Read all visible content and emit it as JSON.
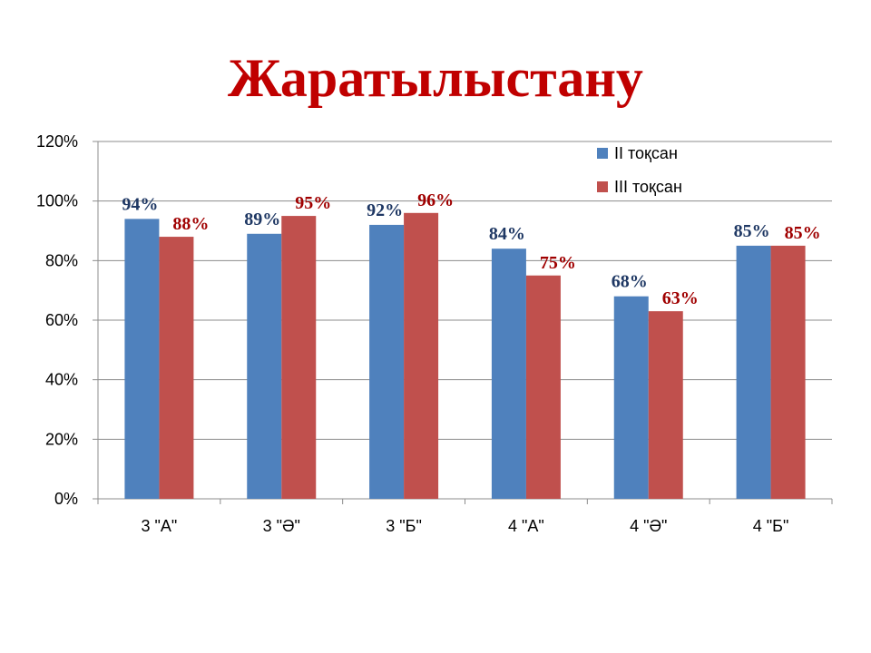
{
  "title": "Жаратылыстану",
  "colors": {
    "title": "#C00000",
    "series_1": "#4F81BD",
    "series_2": "#C0504D",
    "label_1": "#1F3864",
    "label_2": "#A00000"
  },
  "chart_data": {
    "type": "bar",
    "title": "Жаратылыстану",
    "xlabel": "",
    "ylabel": "",
    "ylim": [
      0,
      120
    ],
    "yticks": [
      "0%",
      "20%",
      "40%",
      "60%",
      "80%",
      "100%",
      "120%"
    ],
    "grid": true,
    "legend_position": "top-right",
    "categories": [
      "3 \"А\"",
      "3 \"Ә\"",
      "3 \"Б\"",
      "4 \"А\"",
      "4 \"Ә\"",
      "4 \"Б\""
    ],
    "series": [
      {
        "name": "II тоқсан",
        "values": [
          94,
          89,
          92,
          84,
          68,
          85
        ],
        "labels": [
          "94%",
          "89%",
          "92%",
          "84%",
          "68%",
          "85%"
        ]
      },
      {
        "name": "III тоқсан",
        "values": [
          88,
          95,
          96,
          75,
          63,
          85
        ],
        "labels": [
          "88%",
          "95%",
          "96%",
          "75%",
          "63%",
          "85%"
        ]
      }
    ]
  }
}
